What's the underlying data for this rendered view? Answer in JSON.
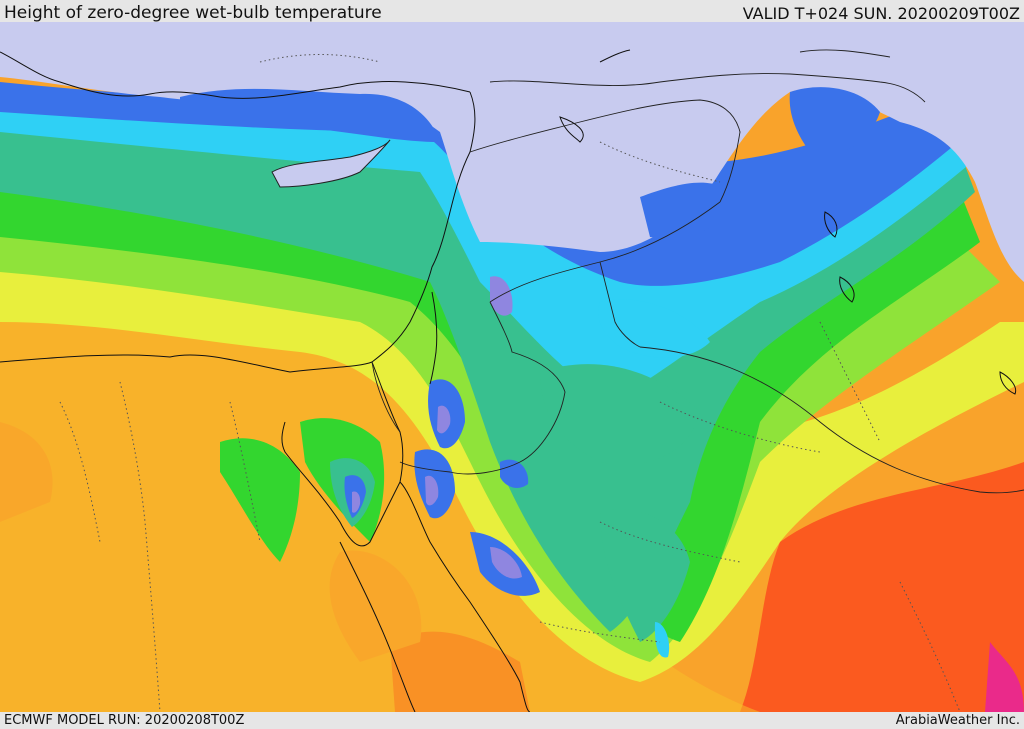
{
  "header": {
    "title": "Height of zero-degree wet-bulb temperature",
    "valid": "VALID T+024 SUN. 20200209T00Z"
  },
  "footer": {
    "model_run": "ECMWF MODEL RUN: 20200208T00Z",
    "credit": "ArabiaWeather Inc."
  },
  "colors": {
    "below_ground": "#c8cbef",
    "blue": "#3a72ea",
    "light_blue": "#2fd0f5",
    "teal": "#38c08f",
    "green": "#33d62f",
    "lime": "#8fe33a",
    "yellow": "#e8ef3d",
    "gold": "#f8c02a",
    "orange": "#f9a32b",
    "dark_orange": "#fb8a2c",
    "red_orange": "#fb5a1f",
    "magenta": "#ea2a8a",
    "violet": "#8f86e0",
    "sea_blue": "#5b7be8"
  }
}
